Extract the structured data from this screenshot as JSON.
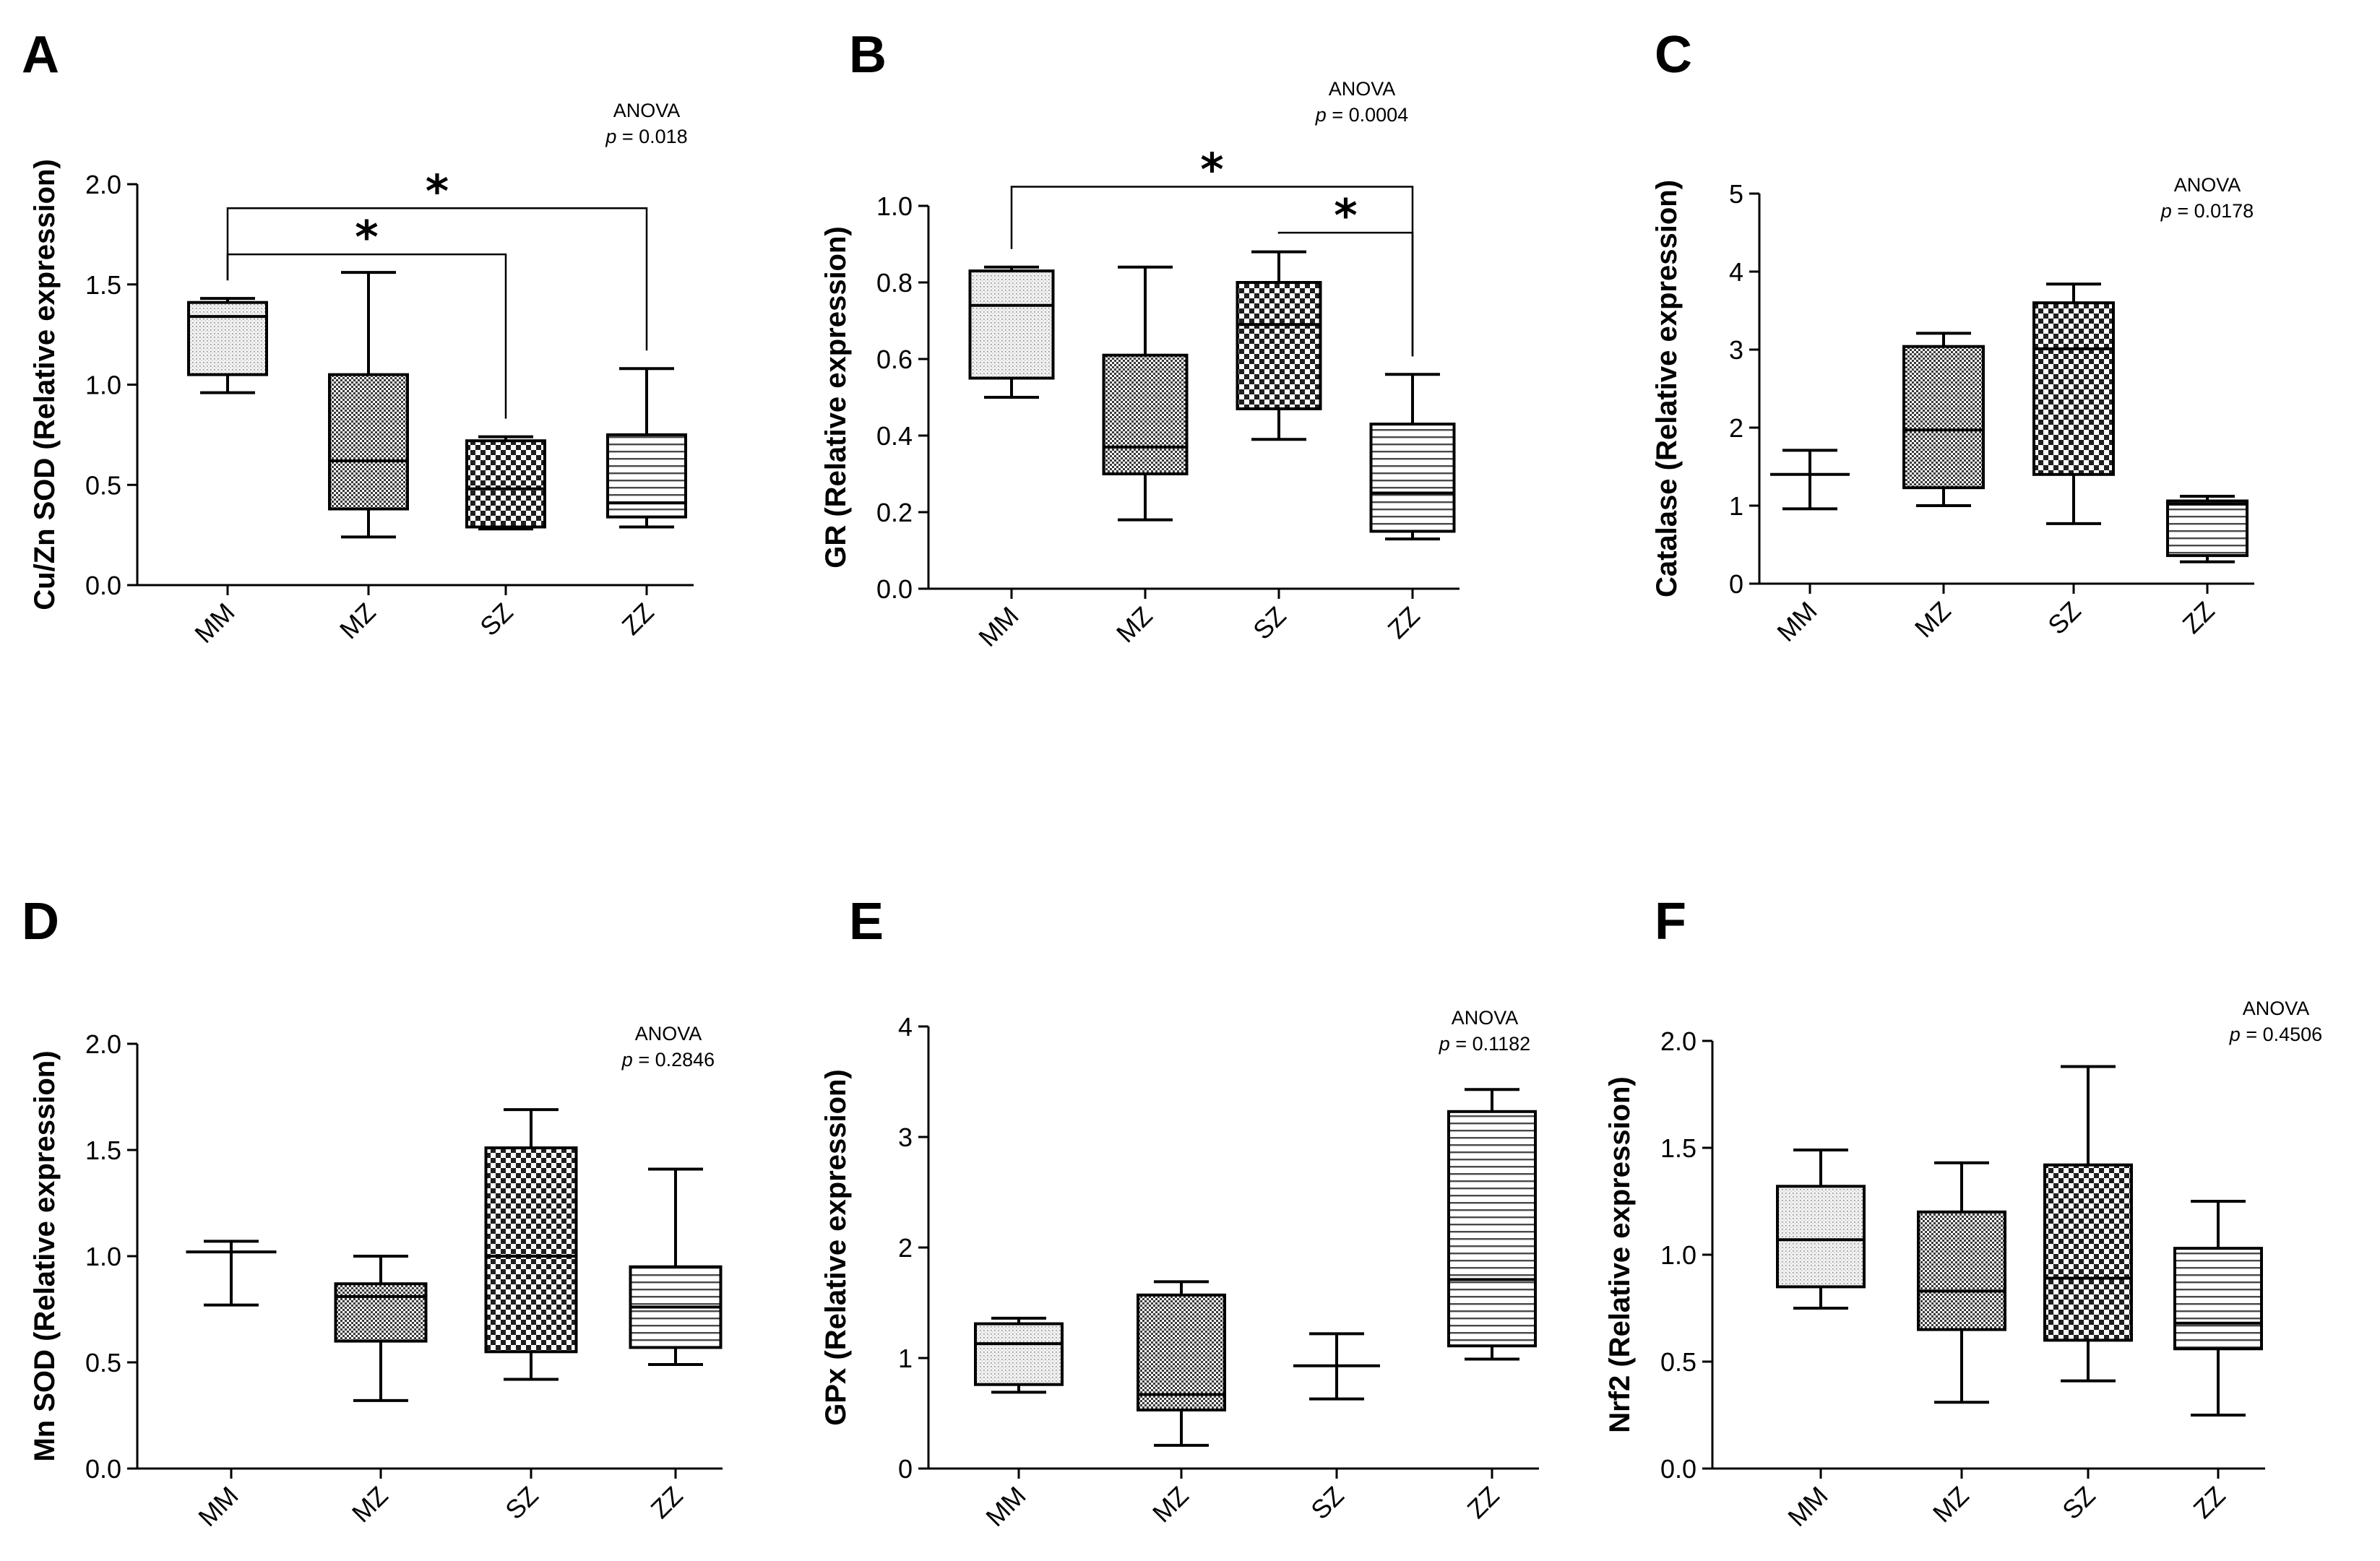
{
  "figure": {
    "background": "#ffffff"
  },
  "chart_data": [
    {
      "panel": "A",
      "type": "box",
      "ylabel": "Cu/Zn SOD (Relative expression)",
      "ylim": [
        0.0,
        2.0
      ],
      "yticks": [
        "0.0",
        "0.5",
        "1.0",
        "1.5",
        "2.0"
      ],
      "categories": [
        "MM",
        "MZ",
        "SZ",
        "ZZ"
      ],
      "boxes": [
        {
          "group": "MM",
          "min": 0.96,
          "q1": 1.05,
          "median": 1.34,
          "q3": 1.41,
          "max": 1.43,
          "pattern": "dots"
        },
        {
          "group": "MZ",
          "min": 0.24,
          "q1": 0.38,
          "median": 0.62,
          "q3": 1.05,
          "max": 1.56,
          "pattern": "fine-check"
        },
        {
          "group": "SZ",
          "min": 0.28,
          "q1": 0.29,
          "median": 0.48,
          "q3": 0.72,
          "max": 0.74,
          "pattern": "check"
        },
        {
          "group": "ZZ",
          "min": 0.29,
          "q1": 0.34,
          "median": 0.41,
          "q3": 0.75,
          "max": 1.08,
          "pattern": "hlines"
        }
      ],
      "annotation": {
        "test": "ANOVA",
        "p_label": "p",
        "p_value": "= 0.018"
      },
      "significance": [
        {
          "from": "MM",
          "to": "ZZ",
          "label": "*",
          "bracket_y": 1.88
        },
        {
          "from": "MM",
          "to": "SZ",
          "label": "*",
          "bracket_y": 1.65
        }
      ]
    },
    {
      "panel": "B",
      "type": "box",
      "ylabel": "GR (Relative expression)",
      "ylim": [
        0.0,
        1.0
      ],
      "yticks": [
        "0.0",
        "0.2",
        "0.4",
        "0.6",
        "0.8",
        "1.0"
      ],
      "categories": [
        "MM",
        "MZ",
        "SZ",
        "ZZ"
      ],
      "boxes": [
        {
          "group": "MM",
          "min": 0.5,
          "q1": 0.55,
          "median": 0.74,
          "q3": 0.83,
          "max": 0.84,
          "pattern": "dots"
        },
        {
          "group": "MZ",
          "min": 0.18,
          "q1": 0.3,
          "median": 0.37,
          "q3": 0.61,
          "max": 0.84,
          "pattern": "fine-check"
        },
        {
          "group": "SZ",
          "min": 0.39,
          "q1": 0.47,
          "median": 0.69,
          "q3": 0.8,
          "max": 0.88,
          "pattern": "check"
        },
        {
          "group": "ZZ",
          "min": 0.13,
          "q1": 0.15,
          "median": 0.25,
          "q3": 0.43,
          "max": 0.56,
          "pattern": "hlines"
        }
      ],
      "annotation": {
        "test": "ANOVA",
        "p_label": "p",
        "p_value": "= 0.0004"
      },
      "significance": [
        {
          "from": "MM",
          "to": "ZZ",
          "label": "*",
          "bracket_y": 1.05
        },
        {
          "from": "SZ",
          "to": "ZZ",
          "label": "*",
          "bracket_y": 0.93
        }
      ]
    },
    {
      "panel": "C",
      "type": "box",
      "ylabel": "Catalase (Relative expression)",
      "ylim": [
        0,
        5
      ],
      "yticks": [
        "0",
        "1",
        "2",
        "3",
        "4",
        "5"
      ],
      "categories": [
        "MM",
        "MZ",
        "SZ",
        "ZZ"
      ],
      "boxes": [
        {
          "group": "MM",
          "min": 0.96,
          "q1": 1.4,
          "median": 1.4,
          "q3": 1.4,
          "max": 1.71,
          "pattern": "dots"
        },
        {
          "group": "MZ",
          "min": 1.0,
          "q1": 1.23,
          "median": 1.97,
          "q3": 3.04,
          "max": 3.21,
          "pattern": "fine-check"
        },
        {
          "group": "SZ",
          "min": 0.77,
          "q1": 1.4,
          "median": 3.01,
          "q3": 3.6,
          "max": 3.84,
          "pattern": "check"
        },
        {
          "group": "ZZ",
          "min": 0.28,
          "q1": 0.36,
          "median": 1.02,
          "q3": 1.06,
          "max": 1.12,
          "pattern": "hlines"
        }
      ],
      "annotation": {
        "test": "ANOVA",
        "p_label": "p",
        "p_value": "= 0.0178"
      },
      "significance": []
    },
    {
      "panel": "D",
      "type": "box",
      "ylabel": "Mn SOD (Relative expression)",
      "ylim": [
        0.0,
        2.0
      ],
      "yticks": [
        "0.0",
        "0.5",
        "1.0",
        "1.5",
        "2.0"
      ],
      "categories": [
        "MM",
        "MZ",
        "SZ",
        "ZZ"
      ],
      "boxes": [
        {
          "group": "MM",
          "min": 0.77,
          "q1": 1.02,
          "median": 1.02,
          "q3": 1.02,
          "max": 1.07,
          "pattern": "dots"
        },
        {
          "group": "MZ",
          "min": 0.32,
          "q1": 0.6,
          "median": 0.81,
          "q3": 0.87,
          "max": 1.0,
          "pattern": "fine-check"
        },
        {
          "group": "SZ",
          "min": 0.42,
          "q1": 0.55,
          "median": 1.0,
          "q3": 1.51,
          "max": 1.69,
          "pattern": "check"
        },
        {
          "group": "ZZ",
          "min": 0.49,
          "q1": 0.57,
          "median": 0.76,
          "q3": 0.95,
          "max": 1.41,
          "pattern": "hlines"
        }
      ],
      "annotation": {
        "test": "ANOVA",
        "p_label": "p",
        "p_value": "= 0.2846"
      },
      "significance": []
    },
    {
      "panel": "E",
      "type": "box",
      "ylabel": "GPx (Relative expression)",
      "ylim": [
        0,
        4
      ],
      "yticks": [
        "0",
        "1",
        "2",
        "3",
        "4"
      ],
      "categories": [
        "MM",
        "MZ",
        "SZ",
        "ZZ"
      ],
      "boxes": [
        {
          "group": "MM",
          "min": 0.69,
          "q1": 0.76,
          "median": 1.13,
          "q3": 1.31,
          "max": 1.36,
          "pattern": "dots"
        },
        {
          "group": "MZ",
          "min": 0.21,
          "q1": 0.53,
          "median": 0.67,
          "q3": 1.57,
          "max": 1.69,
          "pattern": "fine-check"
        },
        {
          "group": "SZ",
          "min": 0.63,
          "q1": 0.93,
          "median": 0.93,
          "q3": 0.93,
          "max": 1.22,
          "pattern": "check"
        },
        {
          "group": "ZZ",
          "min": 0.99,
          "q1": 1.11,
          "median": 1.71,
          "q3": 3.23,
          "max": 3.43,
          "pattern": "hlines"
        }
      ],
      "annotation": {
        "test": "ANOVA",
        "p_label": "p",
        "p_value": "= 0.1182"
      },
      "significance": []
    },
    {
      "panel": "F",
      "type": "box",
      "ylabel": "Nrf2 (Relative expression)",
      "ylim": [
        0.0,
        2.0
      ],
      "yticks": [
        "0.0",
        "0.5",
        "1.0",
        "1.5",
        "2.0"
      ],
      "categories": [
        "MM",
        "MZ",
        "SZ",
        "ZZ"
      ],
      "boxes": [
        {
          "group": "MM",
          "min": 0.75,
          "q1": 0.85,
          "median": 1.07,
          "q3": 1.32,
          "max": 1.49,
          "pattern": "dots"
        },
        {
          "group": "MZ",
          "min": 0.31,
          "q1": 0.65,
          "median": 0.83,
          "q3": 1.2,
          "max": 1.43,
          "pattern": "fine-check"
        },
        {
          "group": "SZ",
          "min": 0.41,
          "q1": 0.6,
          "median": 0.89,
          "q3": 1.42,
          "max": 1.88,
          "pattern": "check"
        },
        {
          "group": "ZZ",
          "min": 0.25,
          "q1": 0.56,
          "median": 0.68,
          "q3": 1.03,
          "max": 1.25,
          "pattern": "hlines"
        }
      ],
      "annotation": {
        "test": "ANOVA",
        "p_label": "p",
        "p_value": "= 0.4506"
      },
      "significance": []
    }
  ]
}
